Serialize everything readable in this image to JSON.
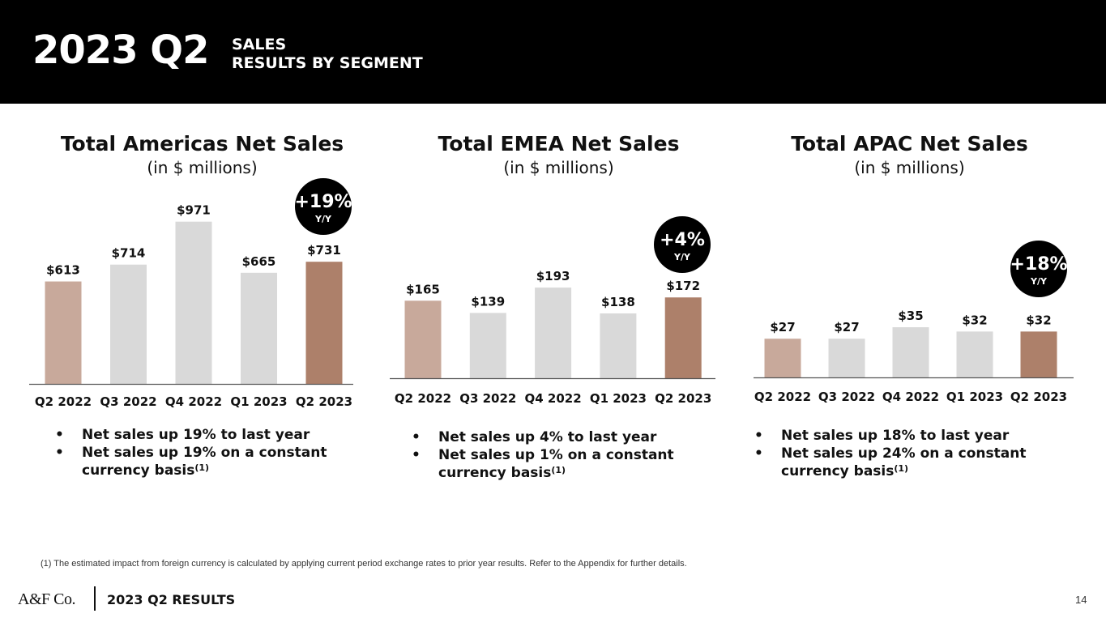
{
  "header": {
    "title": "2023 Q2",
    "subtitle_line1": "SALES",
    "subtitle_line2": "RESULTS BY SEGMENT"
  },
  "chart_data": [
    {
      "type": "bar",
      "title": "Total Americas Net Sales",
      "subtitle": "(in $ millions)",
      "categories": [
        "Q2 2022",
        "Q3 2022",
        "Q4 2022",
        "Q1 2023",
        "Q2 2023"
      ],
      "values": [
        613,
        714,
        971,
        665,
        731
      ],
      "labels": [
        "$613",
        "$714",
        "$971",
        "$665",
        "$731"
      ],
      "colors": [
        "#c8a99b",
        "#d9d9d9",
        "#d9d9d9",
        "#d9d9d9",
        "#ad806a"
      ],
      "badge": {
        "value": "+19%",
        "label": "Y/Y"
      },
      "grid": false,
      "bullets": [
        "Net sales up 19% to last year",
        "Net sales up 19% on a constant currency basis"
      ],
      "footnote_marker": "(1)"
    },
    {
      "type": "bar",
      "title": "Total EMEA Net Sales",
      "subtitle": "(in $ millions)",
      "categories": [
        "Q2 2022",
        "Q3 2022",
        "Q4 2022",
        "Q1 2023",
        "Q2 2023"
      ],
      "values": [
        165,
        139,
        193,
        138,
        172
      ],
      "labels": [
        "$165",
        "$139",
        "$193",
        "$138",
        "$172"
      ],
      "colors": [
        "#c8a99b",
        "#d9d9d9",
        "#d9d9d9",
        "#d9d9d9",
        "#ad806a"
      ],
      "badge": {
        "value": "+4%",
        "label": "Y/Y"
      },
      "grid": false,
      "bullets": [
        "Net sales up 4% to last year",
        "Net sales up 1% on a constant currency basis"
      ],
      "footnote_marker": "(1)"
    },
    {
      "type": "bar",
      "title": "Total APAC Net Sales",
      "subtitle": "(in $ millions)",
      "categories": [
        "Q2 2022",
        "Q3 2022",
        "Q4 2022",
        "Q1 2023",
        "Q2 2023"
      ],
      "values": [
        27,
        27,
        35,
        32,
        32
      ],
      "labels": [
        "$27",
        "$27",
        "$35",
        "$32",
        "$32"
      ],
      "colors": [
        "#c8a99b",
        "#d9d9d9",
        "#d9d9d9",
        "#d9d9d9",
        "#ad806a"
      ],
      "badge": {
        "value": "+18%",
        "label": "Y/Y"
      },
      "grid": false,
      "bullets": [
        "Net sales up 18% to last year",
        "Net sales up 24% on a constant currency basis"
      ],
      "footnote_marker": "(1)"
    }
  ],
  "footnote": "(1) The estimated impact from foreign currency is calculated by applying current period exchange rates to prior year results. Refer to the Appendix for further details.",
  "footer": {
    "logo": "A&F Co.",
    "label": "2023 Q2 RESULTS",
    "page": "14"
  }
}
